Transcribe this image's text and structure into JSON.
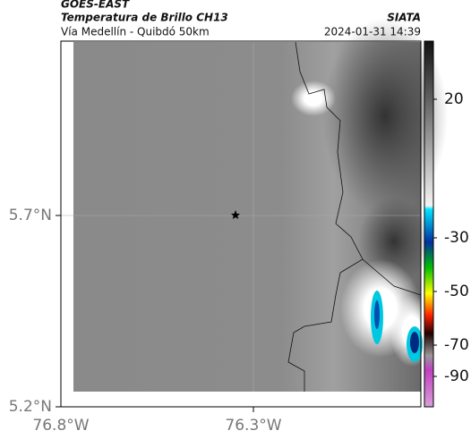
{
  "header": {
    "satellite": "GOES-EAST",
    "product": "Temperatura de Brillo CH13",
    "route": "Vía Medellín - Quibdó 50km",
    "source": "SIATA",
    "timestamp": "2024-01-31 14:39"
  },
  "axes": {
    "lat_labels": [
      "5.7°N",
      "5.2°N"
    ],
    "lon_labels": [
      "76.8°W",
      "76.3°W"
    ]
  },
  "colorbar": {
    "ticks": [
      "20",
      "-30",
      "-50",
      "-70",
      "-90"
    ]
  }
}
